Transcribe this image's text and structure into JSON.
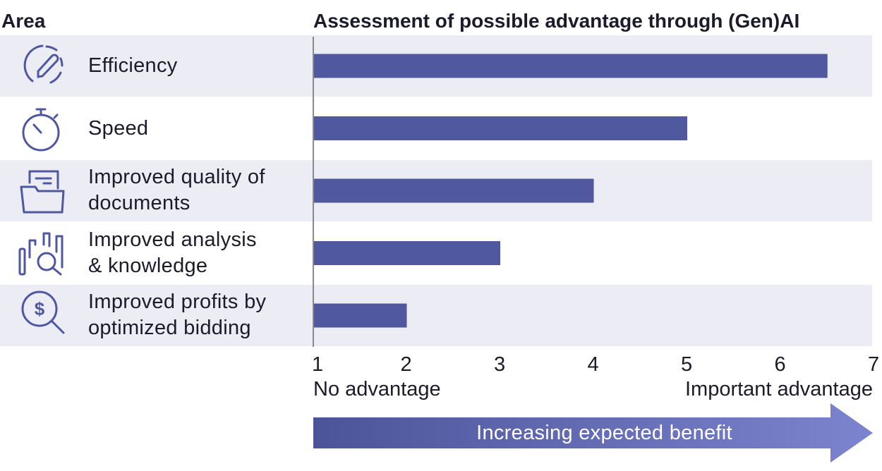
{
  "header": {
    "area_title": "Area",
    "assessment_title": "Assessment of possible advantage through (Gen)AI"
  },
  "rows": [
    {
      "label_lines": [
        "Efficiency"
      ],
      "icon": "gauge-icon"
    },
    {
      "label_lines": [
        "Speed"
      ],
      "icon": "stopwatch-icon"
    },
    {
      "label_lines": [
        "Improved quality of",
        "documents"
      ],
      "icon": "folder-document-icon"
    },
    {
      "label_lines": [
        "Improved analysis",
        "& knowledge"
      ],
      "icon": "analysis-magnifier-icon"
    },
    {
      "label_lines": [
        "Improved profits by",
        "optimized bidding"
      ],
      "icon": "dollar-magnifier-icon"
    }
  ],
  "chart_data": {
    "type": "bar",
    "orientation": "horizontal",
    "categories": [
      "Efficiency",
      "Speed",
      "Improved quality of documents",
      "Improved analysis & knowledge",
      "Improved profits by optimized bidding"
    ],
    "values": [
      6.5,
      5,
      4,
      3,
      2
    ],
    "xlim": [
      1,
      7
    ],
    "xticks": [
      "1",
      "2",
      "3",
      "4",
      "5",
      "6",
      "7"
    ],
    "x_low_label": "No advantage",
    "x_high_label": "Important advantage",
    "grid": false
  },
  "arrow": {
    "label": "Increasing expected benefit"
  },
  "colors": {
    "bar": "#5058a0",
    "row_band": "#ececf5",
    "axis": "#8a8a8a",
    "icon": "#4f57a0",
    "arrow_start": "#4c5499",
    "arrow_end": "#7c84cf"
  }
}
